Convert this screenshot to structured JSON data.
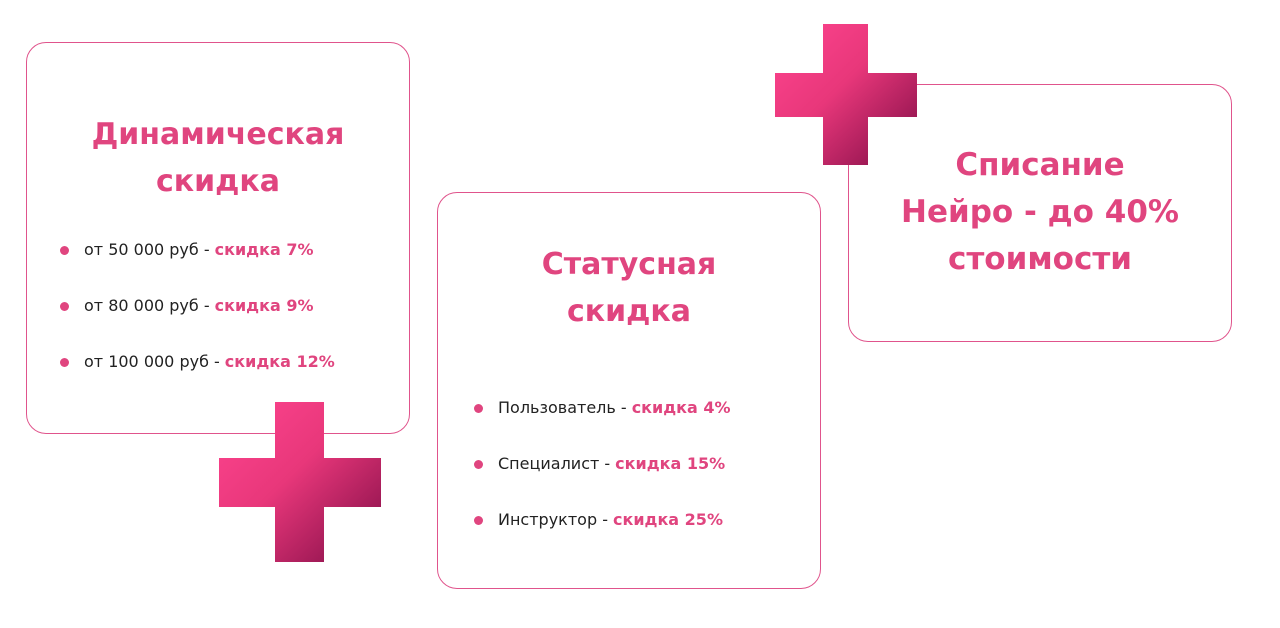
{
  "cards": [
    {
      "title_lines": [
        "Динамическая",
        "скидка"
      ],
      "items": [
        {
          "text": "от 50 000 руб -",
          "highlight": "скидка 7%"
        },
        {
          "text": "от 80 000 руб -",
          "highlight": "скидка 9%"
        },
        {
          "text": "от 100 000 руб -",
          "highlight": "скидка 12%"
        }
      ]
    },
    {
      "title_lines": [
        "Статусная",
        "скидка"
      ],
      "items": [
        {
          "text": "Пользователь -",
          "highlight": "скидка 4%"
        },
        {
          "text": "Специалист -",
          "highlight": "скидка 15%"
        },
        {
          "text": "Инструктор -",
          "highlight": "скидка 25%"
        }
      ]
    },
    {
      "title_lines": [
        "Списание",
        "Нейро - до 40%",
        "стоимости"
      ],
      "items": []
    }
  ]
}
